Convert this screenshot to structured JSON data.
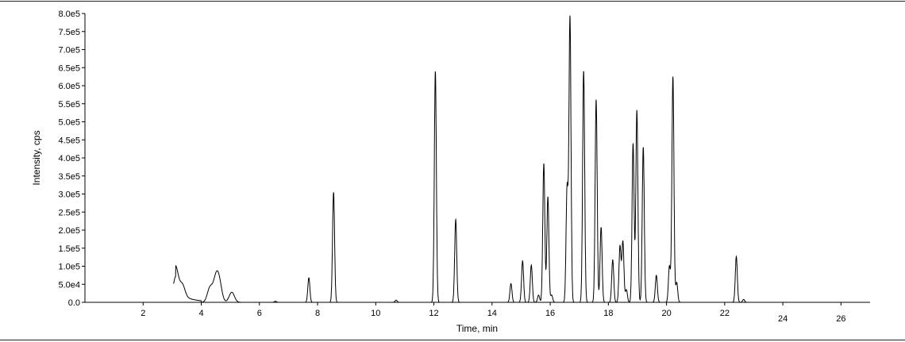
{
  "chart_data": {
    "type": "line",
    "title": "",
    "xlabel": "Time, min",
    "ylabel": "Intensity, cps",
    "xlim": [
      0,
      27
    ],
    "ylim": [
      0,
      800000
    ],
    "grid": false,
    "legend": "none",
    "x_ticks": [
      2,
      4,
      6,
      8,
      10,
      12,
      14,
      16,
      18,
      20,
      22,
      24,
      26
    ],
    "x_tick_labels": [
      "2",
      "4",
      "6",
      "8",
      "10",
      "12",
      "14",
      "16",
      "18",
      "20",
      "22",
      "24",
      "26"
    ],
    "y_ticks": [
      0,
      50000,
      100000,
      150000,
      200000,
      250000,
      300000,
      350000,
      400000,
      450000,
      500000,
      550000,
      600000,
      650000,
      700000,
      750000,
      800000
    ],
    "y_tick_labels": [
      "0.0",
      "5.0e4",
      "1.0e5",
      "1.5e5",
      "2.0e5",
      "2.5e5",
      "3.0e5",
      "3.5e5",
      "4.0e5",
      "4.5e5",
      "5.0e5",
      "5.5e5",
      "6.0e5",
      "6.5e5",
      "7.0e5",
      "7.5e5",
      "8.0e5"
    ],
    "line_color": "#000000",
    "peaks": [
      {
        "rt": 3.12,
        "height": 70000
      },
      {
        "rt": 3.35,
        "height": 32000
      },
      {
        "rt": 4.3,
        "height": 40000
      },
      {
        "rt": 4.5,
        "height": 58000
      },
      {
        "rt": 4.62,
        "height": 50000
      },
      {
        "rt": 5.05,
        "height": 28000
      },
      {
        "rt": 6.55,
        "height": 3000
      },
      {
        "rt": 7.7,
        "height": 68000
      },
      {
        "rt": 8.55,
        "height": 305000
      },
      {
        "rt": 10.7,
        "height": 6000
      },
      {
        "rt": 12.05,
        "height": 640000
      },
      {
        "rt": 12.75,
        "height": 230000
      },
      {
        "rt": 14.65,
        "height": 52000
      },
      {
        "rt": 15.05,
        "height": 115000
      },
      {
        "rt": 15.35,
        "height": 103000
      },
      {
        "rt": 15.6,
        "height": 20000
      },
      {
        "rt": 15.78,
        "height": 385000
      },
      {
        "rt": 15.92,
        "height": 293000
      },
      {
        "rt": 16.05,
        "height": 20000
      },
      {
        "rt": 16.58,
        "height": 315000
      },
      {
        "rt": 16.68,
        "height": 790000
      },
      {
        "rt": 17.15,
        "height": 642000
      },
      {
        "rt": 17.58,
        "height": 562000
      },
      {
        "rt": 17.75,
        "height": 208000
      },
      {
        "rt": 18.15,
        "height": 118000
      },
      {
        "rt": 18.4,
        "height": 155000
      },
      {
        "rt": 18.5,
        "height": 168000
      },
      {
        "rt": 18.62,
        "height": 35000
      },
      {
        "rt": 18.85,
        "height": 440000
      },
      {
        "rt": 18.98,
        "height": 532000
      },
      {
        "rt": 19.2,
        "height": 430000
      },
      {
        "rt": 19.65,
        "height": 75000
      },
      {
        "rt": 20.1,
        "height": 100000
      },
      {
        "rt": 20.22,
        "height": 625000
      },
      {
        "rt": 20.35,
        "height": 55000
      },
      {
        "rt": 22.4,
        "height": 127000
      },
      {
        "rt": 22.65,
        "height": 8000
      }
    ]
  }
}
